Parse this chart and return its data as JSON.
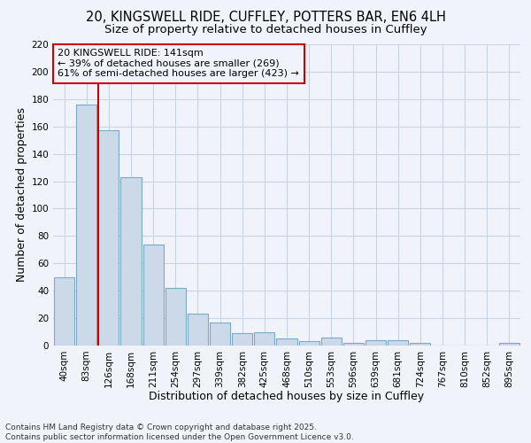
{
  "title_line1": "20, KINGSWELL RIDE, CUFFLEY, POTTERS BAR, EN6 4LH",
  "title_line2": "Size of property relative to detached houses in Cuffley",
  "xlabel": "Distribution of detached houses by size in Cuffley",
  "ylabel": "Number of detached properties",
  "categories": [
    "40sqm",
    "83sqm",
    "126sqm",
    "168sqm",
    "211sqm",
    "254sqm",
    "297sqm",
    "339sqm",
    "382sqm",
    "425sqm",
    "468sqm",
    "510sqm",
    "553sqm",
    "596sqm",
    "639sqm",
    "681sqm",
    "724sqm",
    "767sqm",
    "810sqm",
    "852sqm",
    "895sqm"
  ],
  "values": [
    50,
    176,
    157,
    123,
    74,
    42,
    23,
    17,
    9,
    10,
    5,
    3,
    6,
    2,
    4,
    4,
    2,
    0,
    0,
    0,
    2
  ],
  "bar_color": "#ccd9e8",
  "bar_edge_color": "#7aaac8",
  "grid_color": "#c8d4e4",
  "background_color": "#f0f4fa",
  "vline_color": "#cc0000",
  "annotation_text": "20 KINGSWELL RIDE: 141sqm\n← 39% of detached houses are smaller (269)\n61% of semi-detached houses are larger (423) →",
  "annotation_box_color": "#cc0000",
  "ylim": [
    0,
    220
  ],
  "yticks": [
    0,
    20,
    40,
    60,
    80,
    100,
    120,
    140,
    160,
    180,
    200,
    220
  ],
  "footer": "Contains HM Land Registry data © Crown copyright and database right 2025.\nContains public sector information licensed under the Open Government Licence v3.0.",
  "title_fontsize": 10.5,
  "subtitle_fontsize": 9.5,
  "tick_fontsize": 7.5,
  "xlabel_fontsize": 9,
  "ylabel_fontsize": 9,
  "annotation_fontsize": 8,
  "footer_fontsize": 6.5
}
